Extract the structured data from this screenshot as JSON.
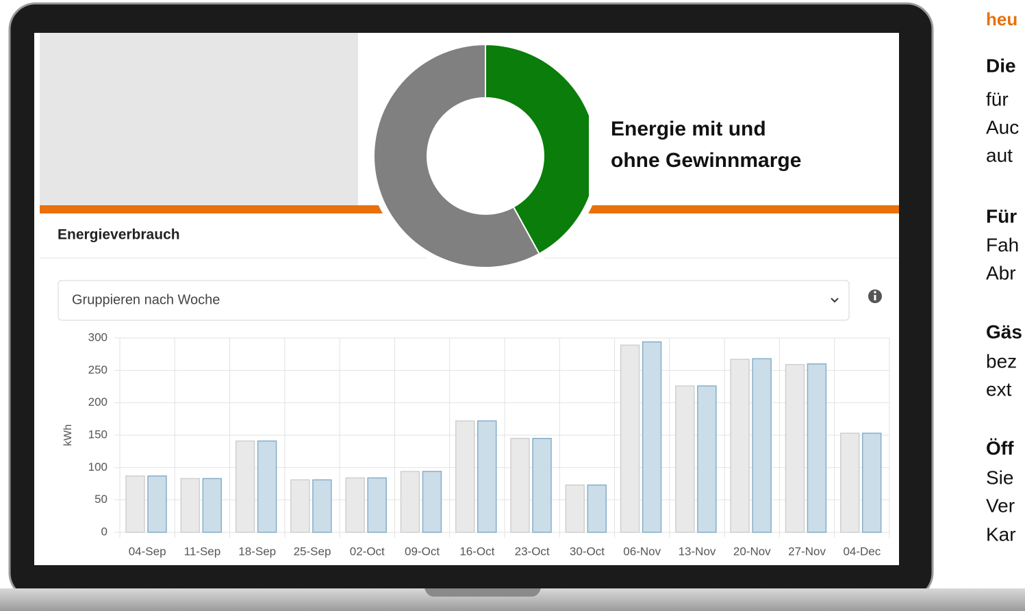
{
  "chart_data": [
    {
      "type": "pie",
      "title_lines": [
        "Energie mit und",
        "ohne Gewinnmarge"
      ],
      "values": [
        42,
        58
      ],
      "colors": [
        "#0a7d0a",
        "#808080"
      ]
    },
    {
      "type": "bar",
      "title": "Energieverbrauch",
      "ylabel": "kWh",
      "categories": [
        "04-Sep",
        "11-Sep",
        "18-Sep",
        "25-Sep",
        "02-Oct",
        "09-Oct",
        "16-Oct",
        "23-Oct",
        "30-Oct",
        "06-Nov",
        "13-Nov",
        "20-Nov",
        "27-Nov",
        "04-Dec"
      ],
      "series": [
        {
          "color": "#e9e9e9",
          "values": [
            87,
            83,
            141,
            81,
            84,
            94,
            172,
            145,
            73,
            289,
            226,
            267,
            259,
            153
          ]
        },
        {
          "color": "#cadde8",
          "values": [
            87,
            83,
            141,
            81,
            84,
            94,
            172,
            145,
            73,
            294,
            226,
            268,
            260,
            153
          ]
        }
      ],
      "ylim": [
        0,
        300
      ],
      "yticks": [
        0,
        50,
        100,
        150,
        200,
        250,
        300
      ],
      "grid": true
    }
  ],
  "controls": {
    "group_by": "Gruppieren nach Woche"
  },
  "side_text": {
    "heading": "heu",
    "lines": [
      "Die",
      "für",
      "Auc",
      "aut",
      "Für",
      "Fah",
      "Abr",
      "Gäs",
      "bez",
      "ext",
      "Öff",
      "Sie",
      "Ver",
      "Kar"
    ]
  }
}
